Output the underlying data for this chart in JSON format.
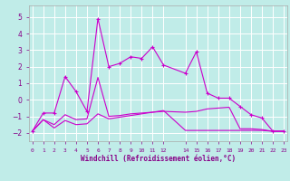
{
  "xlabel": "Windchill (Refroidissement éolien,°C)",
  "background_color": "#c0ece8",
  "grid_color": "#ffffff",
  "line_color": "#cc00cc",
  "x_ticks": [
    0,
    1,
    2,
    3,
    4,
    5,
    6,
    7,
    8,
    9,
    10,
    11,
    12,
    14,
    15,
    16,
    17,
    18,
    19,
    20,
    21,
    22,
    23
  ],
  "x_labels": [
    "0",
    "1",
    "2",
    "3",
    "4",
    "5",
    "6",
    "7",
    "8",
    "9",
    "10",
    "11",
    "12",
    "14",
    "15",
    "16",
    "17",
    "18",
    "19",
    "20",
    "21",
    "22",
    "23"
  ],
  "ylim": [
    -2.5,
    5.7
  ],
  "yticks": [
    -2,
    -1,
    0,
    1,
    2,
    3,
    4,
    5
  ],
  "xlim": [
    -0.3,
    23.3
  ],
  "series1_x": [
    0,
    1,
    2,
    3,
    4,
    5,
    6,
    7,
    8,
    9,
    10,
    11,
    12,
    14,
    15,
    16,
    17,
    18,
    19,
    20,
    21,
    22,
    23
  ],
  "series1_y": [
    -1.9,
    -0.8,
    -0.8,
    1.4,
    0.5,
    -0.7,
    4.9,
    2.0,
    2.2,
    2.6,
    2.5,
    3.2,
    2.1,
    1.6,
    2.9,
    0.4,
    0.1,
    0.1,
    -0.4,
    -0.9,
    -1.1,
    -1.9,
    -1.9
  ],
  "series2_x": [
    0,
    1,
    2,
    3,
    4,
    5,
    6,
    7,
    8,
    9,
    10,
    11,
    12,
    14,
    15,
    16,
    17,
    18,
    19,
    20,
    21,
    22,
    23
  ],
  "series2_y": [
    -1.9,
    -1.2,
    -1.5,
    -0.9,
    -1.2,
    -1.15,
    1.35,
    -1.0,
    -0.95,
    -0.85,
    -0.8,
    -0.75,
    -0.7,
    -0.75,
    -0.7,
    -0.55,
    -0.5,
    -0.45,
    -1.75,
    -1.75,
    -1.8,
    -1.9,
    -1.9
  ],
  "series3_x": [
    0,
    1,
    2,
    3,
    4,
    5,
    6,
    7,
    8,
    9,
    10,
    11,
    12,
    14,
    15,
    16,
    17,
    18,
    19,
    20,
    21,
    22,
    23
  ],
  "series3_y": [
    -1.9,
    -1.2,
    -1.7,
    -1.25,
    -1.5,
    -1.45,
    -0.85,
    -1.15,
    -1.05,
    -0.95,
    -0.85,
    -0.75,
    -0.65,
    -1.85,
    -1.85,
    -1.85,
    -1.85,
    -1.85,
    -1.85,
    -1.85,
    -1.85,
    -1.9,
    -1.9
  ]
}
